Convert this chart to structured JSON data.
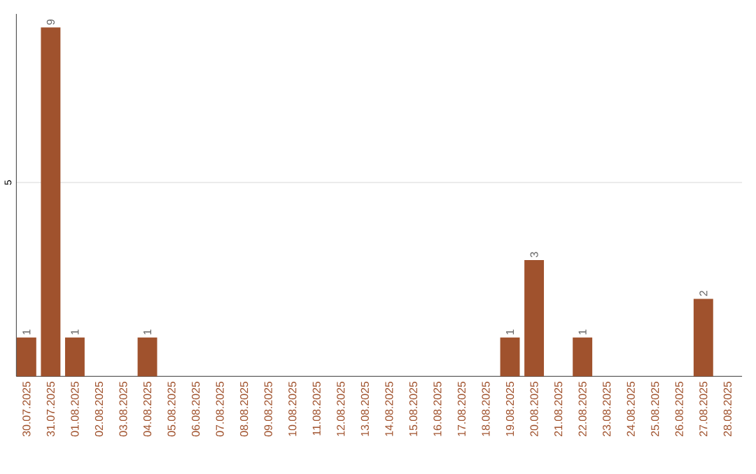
{
  "chart_data": {
    "type": "bar",
    "categories": [
      "30.07.2025",
      "31.07.2025",
      "01.08.2025",
      "02.08.2025",
      "03.08.2025",
      "04.08.2025",
      "05.08.2025",
      "06.08.2025",
      "07.08.2025",
      "08.08.2025",
      "09.08.2025",
      "10.08.2025",
      "11.08.2025",
      "12.08.2025",
      "13.08.2025",
      "14.08.2025",
      "15.08.2025",
      "16.08.2025",
      "17.08.2025",
      "18.08.2025",
      "19.08.2025",
      "20.08.2025",
      "21.08.2025",
      "22.08.2025",
      "23.08.2025",
      "24.08.2025",
      "25.08.2025",
      "26.08.2025",
      "27.08.2025",
      "28.08.2025"
    ],
    "values": [
      1,
      9,
      1,
      0,
      0,
      1,
      0,
      0,
      0,
      0,
      0,
      0,
      0,
      0,
      0,
      0,
      0,
      0,
      0,
      0,
      1,
      3,
      0,
      1,
      0,
      0,
      0,
      0,
      2,
      0
    ],
    "value_labels": [
      "1",
      "9",
      "1",
      null,
      null,
      "1",
      null,
      null,
      null,
      null,
      null,
      null,
      null,
      null,
      null,
      null,
      null,
      null,
      null,
      null,
      "1",
      "3",
      null,
      "1",
      null,
      null,
      null,
      null,
      "2",
      null
    ],
    "color": "#a0522d",
    "ylim": [
      0,
      9.35
    ],
    "yticks": [
      5
    ],
    "grid": "y"
  }
}
